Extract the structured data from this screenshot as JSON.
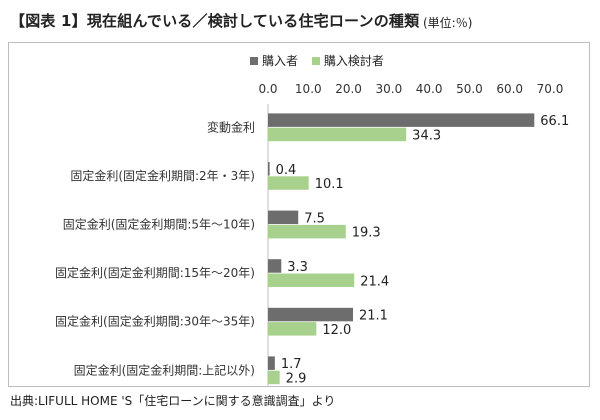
{
  "title": "【図表 1】現在組んでいる／検討している住宅ローンの種類",
  "unit_label": "(単位:％)",
  "source": "出典:LIFULL HOME 'S「住宅ローンに関する意識調査」より",
  "chart_data": {
    "type": "bar",
    "orientation": "horizontal",
    "categories": [
      "変動金利",
      "固定金利(固定金利期間:2年・3年)",
      "固定金利(固定金利期間:5年〜10年)",
      "固定金利(固定金利期間:15年〜20年)",
      "固定金利(固定金利期間:30年〜35年)",
      "固定金利(固定金利期間:上記以外)"
    ],
    "series": [
      {
        "name": "購入者",
        "values": [
          66.1,
          0.4,
          7.5,
          3.3,
          21.1,
          1.7
        ],
        "color": "#6d6d6d"
      },
      {
        "name": "購入検討者",
        "values": [
          34.3,
          10.1,
          19.3,
          21.4,
          12.0,
          2.9
        ],
        "color": "#a9d18e"
      }
    ],
    "value_labels": [
      [
        "66.1",
        "0.4",
        "7.5",
        "3.3",
        "21.1",
        "1.7"
      ],
      [
        "34.3",
        "10.1",
        "19.3",
        "21.4",
        "12.0",
        "2.9"
      ]
    ],
    "xlim": [
      0,
      70
    ],
    "tick_labels": [
      "0.0",
      "10.0",
      "20.0",
      "30.0",
      "40.0",
      "50.0",
      "60.0",
      "70.0"
    ],
    "tick_values": [
      0,
      10,
      20,
      30,
      40,
      50,
      60,
      70
    ],
    "legend_position": "top",
    "axis_position": "top",
    "grid": false
  }
}
